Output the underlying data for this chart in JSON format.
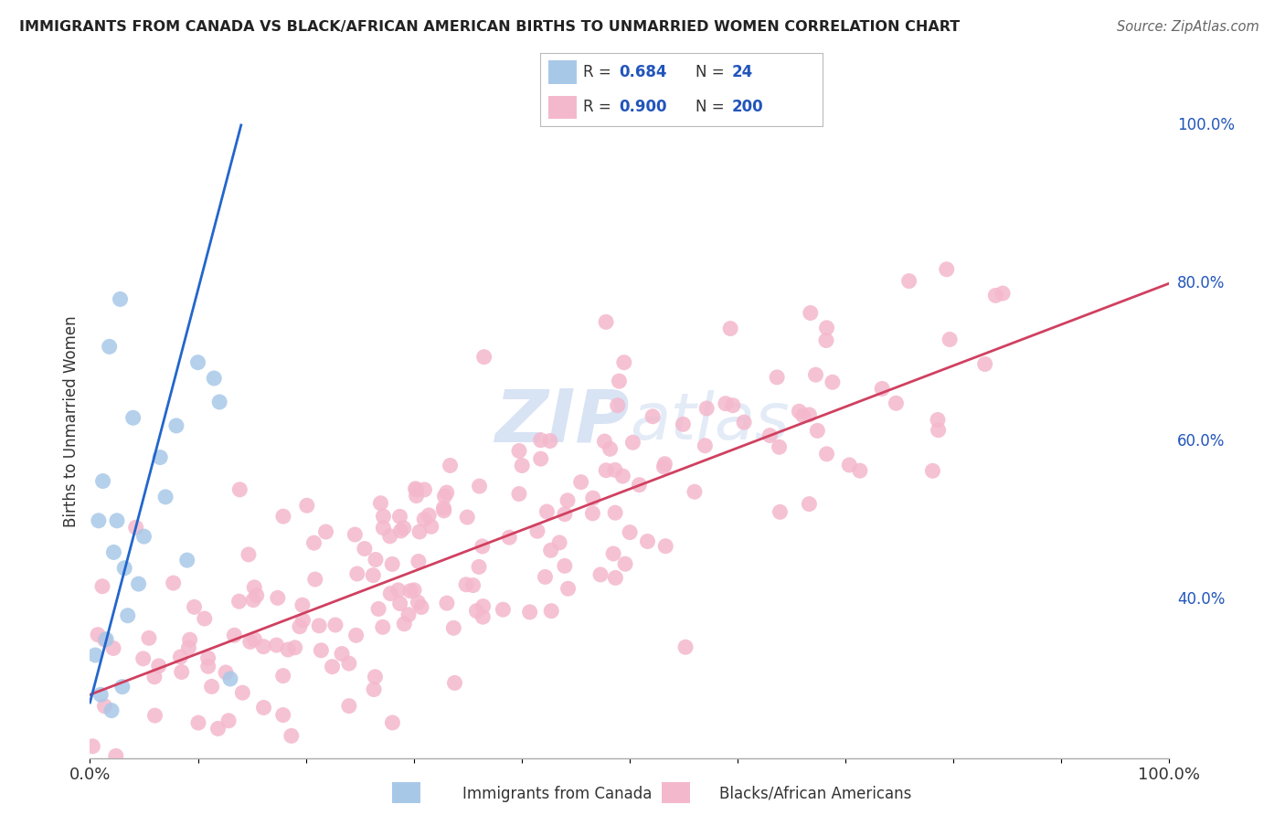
{
  "title": "IMMIGRANTS FROM CANADA VS BLACK/AFRICAN AMERICAN BIRTHS TO UNMARRIED WOMEN CORRELATION CHART",
  "source": "Source: ZipAtlas.com",
  "ylabel": "Births to Unmarried Women",
  "legend_label1": "Immigrants from Canada",
  "legend_label2": "Blacks/African Americans",
  "R1": "0.684",
  "N1": "24",
  "R2": "0.900",
  "N2": "200",
  "blue_color": "#a8c8e8",
  "pink_color": "#f4b8cc",
  "blue_line_color": "#2266cc",
  "pink_line_color": "#d04060",
  "r_color": "#2255bb",
  "watermark_color": "#c8d8f0",
  "background_color": "#ffffff",
  "grid_color": "#cccccc",
  "title_color": "#222222",
  "source_color": "#666666",
  "label_color": "#333333",
  "xlim": [
    0,
    100
  ],
  "ylim": [
    20,
    105
  ],
  "y_ticks": [
    40,
    60,
    80,
    100
  ],
  "x_ticks": [
    0,
    10,
    20,
    30,
    40,
    50,
    60,
    70,
    80,
    90,
    100
  ],
  "blue_scatter_x": [
    0.5,
    1.0,
    1.5,
    2.0,
    2.5,
    2.8,
    3.0,
    3.5,
    4.5,
    5.0,
    6.5,
    7.0,
    8.0,
    9.0,
    10.0,
    11.5,
    12.0,
    0.8,
    1.2,
    2.2,
    3.2,
    4.0,
    1.8,
    13.0
  ],
  "blue_scatter_y": [
    33,
    28,
    35,
    26,
    50,
    78,
    29,
    38,
    42,
    48,
    58,
    53,
    62,
    45,
    70,
    68,
    65,
    50,
    55,
    46,
    44,
    63,
    72,
    30
  ],
  "pink_line_x0": 0,
  "pink_line_y0": 28,
  "pink_line_x1": 100,
  "pink_line_y1": 80,
  "blue_line_x0": 0,
  "blue_line_y0": 27,
  "blue_line_x1": 14,
  "blue_line_y1": 100
}
